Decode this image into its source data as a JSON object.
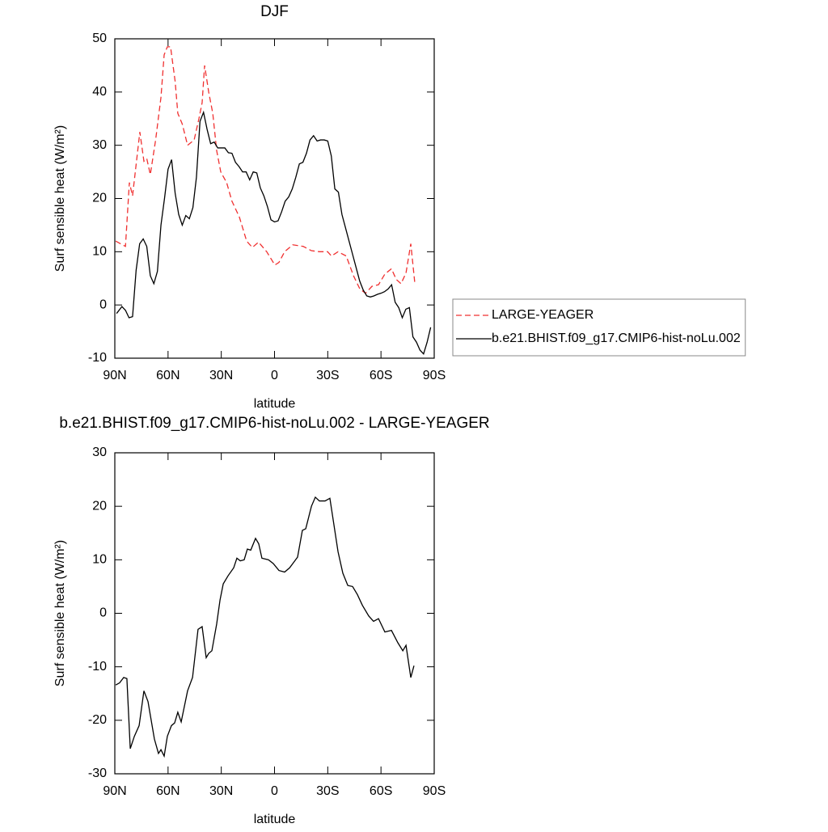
{
  "chart_data": [
    {
      "type": "line",
      "title": "DJF",
      "xlabel": "latitude",
      "ylabel": "Surf sensible heat (W/m²)",
      "xlim": [
        90,
        -90
      ],
      "xticks": [
        {
          "value": 90,
          "label": "90N"
        },
        {
          "value": 60,
          "label": "60N"
        },
        {
          "value": 30,
          "label": "30N"
        },
        0,
        {
          "value": -30,
          "label": "30S"
        },
        {
          "value": -60,
          "label": "60S"
        },
        {
          "value": -90,
          "label": "90S"
        }
      ],
      "ylim": [
        -10,
        50
      ],
      "yticks": [
        -10,
        0,
        10,
        20,
        30,
        40,
        50
      ],
      "legend": "right",
      "series": [
        {
          "name": "LARGE-YEAGER",
          "color": "#f03030",
          "line_style": "dashed",
          "x": [
            89.5,
            84,
            81.8,
            80,
            75.9,
            73.6,
            72,
            70,
            67,
            64,
            62.2,
            60.4,
            58.6,
            56,
            54.5,
            52,
            49,
            45.3,
            42.6,
            40.8,
            39.4,
            37.1,
            34.8,
            32.6,
            30.3,
            27,
            24,
            19.8,
            15.7,
            12.5,
            9,
            4.4,
            -0.2,
            -2.5,
            -5.7,
            -10.3,
            -16.2,
            -20.8,
            -25.3,
            -29.9,
            -32.1,
            -35.8,
            -40.4,
            -44.5,
            -48.1,
            -51.3,
            -54.9,
            -58.6,
            -62.2,
            -65.9,
            -68.6,
            -71.3,
            -74.1,
            -76.8,
            -79.1
          ],
          "values": [
            12,
            11,
            23,
            20.5,
            32.5,
            27,
            27.5,
            24.5,
            31,
            39,
            47,
            48.5,
            48.5,
            42,
            36,
            34,
            30,
            31,
            35,
            38,
            45,
            40,
            36,
            29,
            25,
            23,
            19.5,
            16.5,
            12,
            10.8,
            11.8,
            10,
            7.5,
            8,
            10,
            11.3,
            11,
            10.2,
            10,
            10,
            9.2,
            10,
            9.2,
            5.5,
            3,
            2.2,
            3.5,
            3.8,
            5.8,
            6.8,
            4.8,
            4,
            6,
            11.5,
            4
          ]
        },
        {
          "name": "b.e21.BHIST.f09_g17.CMIP6-hist-noLu.002",
          "color": "#000000",
          "line_style": "solid",
          "x": [
            89,
            86,
            84,
            82,
            80,
            78,
            76,
            74,
            72,
            70,
            68,
            66,
            64,
            62,
            60,
            58,
            56,
            54,
            52,
            50,
            48,
            46,
            44,
            42,
            40,
            38,
            36,
            34,
            32,
            30,
            28,
            26,
            24,
            22,
            20,
            18,
            16,
            14,
            12,
            10,
            8,
            6,
            4,
            2,
            0,
            -2,
            -4,
            -6,
            -8,
            -10,
            -12,
            -14,
            -16,
            -18,
            -20,
            -22,
            -24,
            -26,
            -28,
            -30,
            -32,
            -34,
            -36,
            -38,
            -40,
            -42,
            -44,
            -46,
            -48,
            -50,
            -52,
            -54,
            -56,
            -58,
            -60,
            -62,
            -64,
            -66,
            -68,
            -70,
            -72,
            -74,
            -76,
            -78,
            -80,
            -82,
            -84,
            -86,
            -88
          ],
          "values": [
            -1.6,
            -0.3,
            -1.0,
            -2.4,
            -2.2,
            6.5,
            11.5,
            12.4,
            11,
            5.5,
            4.0,
            6.3,
            15,
            20,
            25.5,
            27.3,
            21,
            17,
            15,
            16.8,
            16.2,
            18.3,
            24,
            34.5,
            36.2,
            33,
            30.3,
            30.6,
            29.5,
            29.5,
            29.5,
            28.6,
            28.5,
            26.8,
            26,
            25,
            25,
            23.5,
            25,
            24.8,
            22,
            20.5,
            18.5,
            16,
            15.6,
            15.8,
            17.5,
            19.5,
            20.3,
            21.8,
            24,
            26.5,
            26.8,
            28.5,
            31,
            31.8,
            30.8,
            31,
            31,
            30.8,
            28,
            21.8,
            21.2,
            17,
            14.5,
            12,
            9.5,
            7,
            4.5,
            2.8,
            1.7,
            1.5,
            1.7,
            2.0,
            2.2,
            2.5,
            3.0,
            3.8,
            0.5,
            -0.5,
            -2.4,
            -0.8,
            -0.5,
            -6,
            -7,
            -8.5,
            -9.2,
            -7,
            -4.2
          ]
        }
      ]
    },
    {
      "type": "line",
      "title": "b.e21.BHIST.f09_g17.CMIP6-hist-noLu.002 - LARGE-YEAGER",
      "xlabel": "latitude",
      "ylabel": "Surf sensible heat (W/m²)",
      "xlim": [
        90,
        -90
      ],
      "xticks": [
        {
          "value": 90,
          "label": "90N"
        },
        {
          "value": 60,
          "label": "60N"
        },
        {
          "value": 30,
          "label": "30N"
        },
        0,
        {
          "value": -30,
          "label": "30S"
        },
        {
          "value": -60,
          "label": "60S"
        },
        {
          "value": -90,
          "label": "90S"
        }
      ],
      "ylim": [
        -30,
        30
      ],
      "yticks": [
        -30,
        -20,
        -10,
        0,
        10,
        20,
        30
      ],
      "series": [
        {
          "color": "#000000",
          "line_style": "solid",
          "x": [
            89.5,
            87.3,
            85,
            83.2,
            81.3,
            79,
            76.3,
            73.6,
            71.3,
            67.7,
            65.4,
            64,
            62.2,
            60.4,
            58.1,
            56.3,
            54.5,
            52.6,
            49,
            46.2,
            43.1,
            40.8,
            38.5,
            37.1,
            35.3,
            32.6,
            30.7,
            28.9,
            26.2,
            23,
            21.2,
            19.3,
            17.1,
            15.3,
            13.4,
            10.7,
            8.9,
            7.1,
            3.4,
            0.7,
            -2.5,
            -5.7,
            -8.5,
            -10.3,
            -13,
            -15.7,
            -17.6,
            -20.8,
            -23,
            -25.3,
            -28.5,
            -31.2,
            -35.8,
            -38.5,
            -41.3,
            -44,
            -46.7,
            -49.5,
            -53.1,
            -55.8,
            -58.6,
            -62.2,
            -65.9,
            -69.5,
            -72.3,
            -74.1,
            -76.8,
            -78.6
          ],
          "values": [
            -13.4,
            -13,
            -12,
            -12.2,
            -25.3,
            -23,
            -21,
            -14.5,
            -16.5,
            -23.5,
            -26.2,
            -25.5,
            -26.7,
            -23,
            -21,
            -20.5,
            -18.5,
            -20.3,
            -14.5,
            -12,
            -3,
            -2.5,
            -8.3,
            -7.5,
            -7,
            -2,
            2.5,
            5.5,
            7,
            8.5,
            10.3,
            9.8,
            10,
            12,
            11.8,
            14,
            13,
            10.3,
            10,
            9.3,
            8,
            7.7,
            8.5,
            9.3,
            10.5,
            15.5,
            15.8,
            20,
            21.7,
            21,
            21,
            21.5,
            11.5,
            7.5,
            5.2,
            5,
            3.5,
            1.5,
            -0.5,
            -1.5,
            -1,
            -3.5,
            -3.2,
            -5.5,
            -7,
            -6,
            -12,
            -9.8
          ]
        }
      ]
    }
  ]
}
